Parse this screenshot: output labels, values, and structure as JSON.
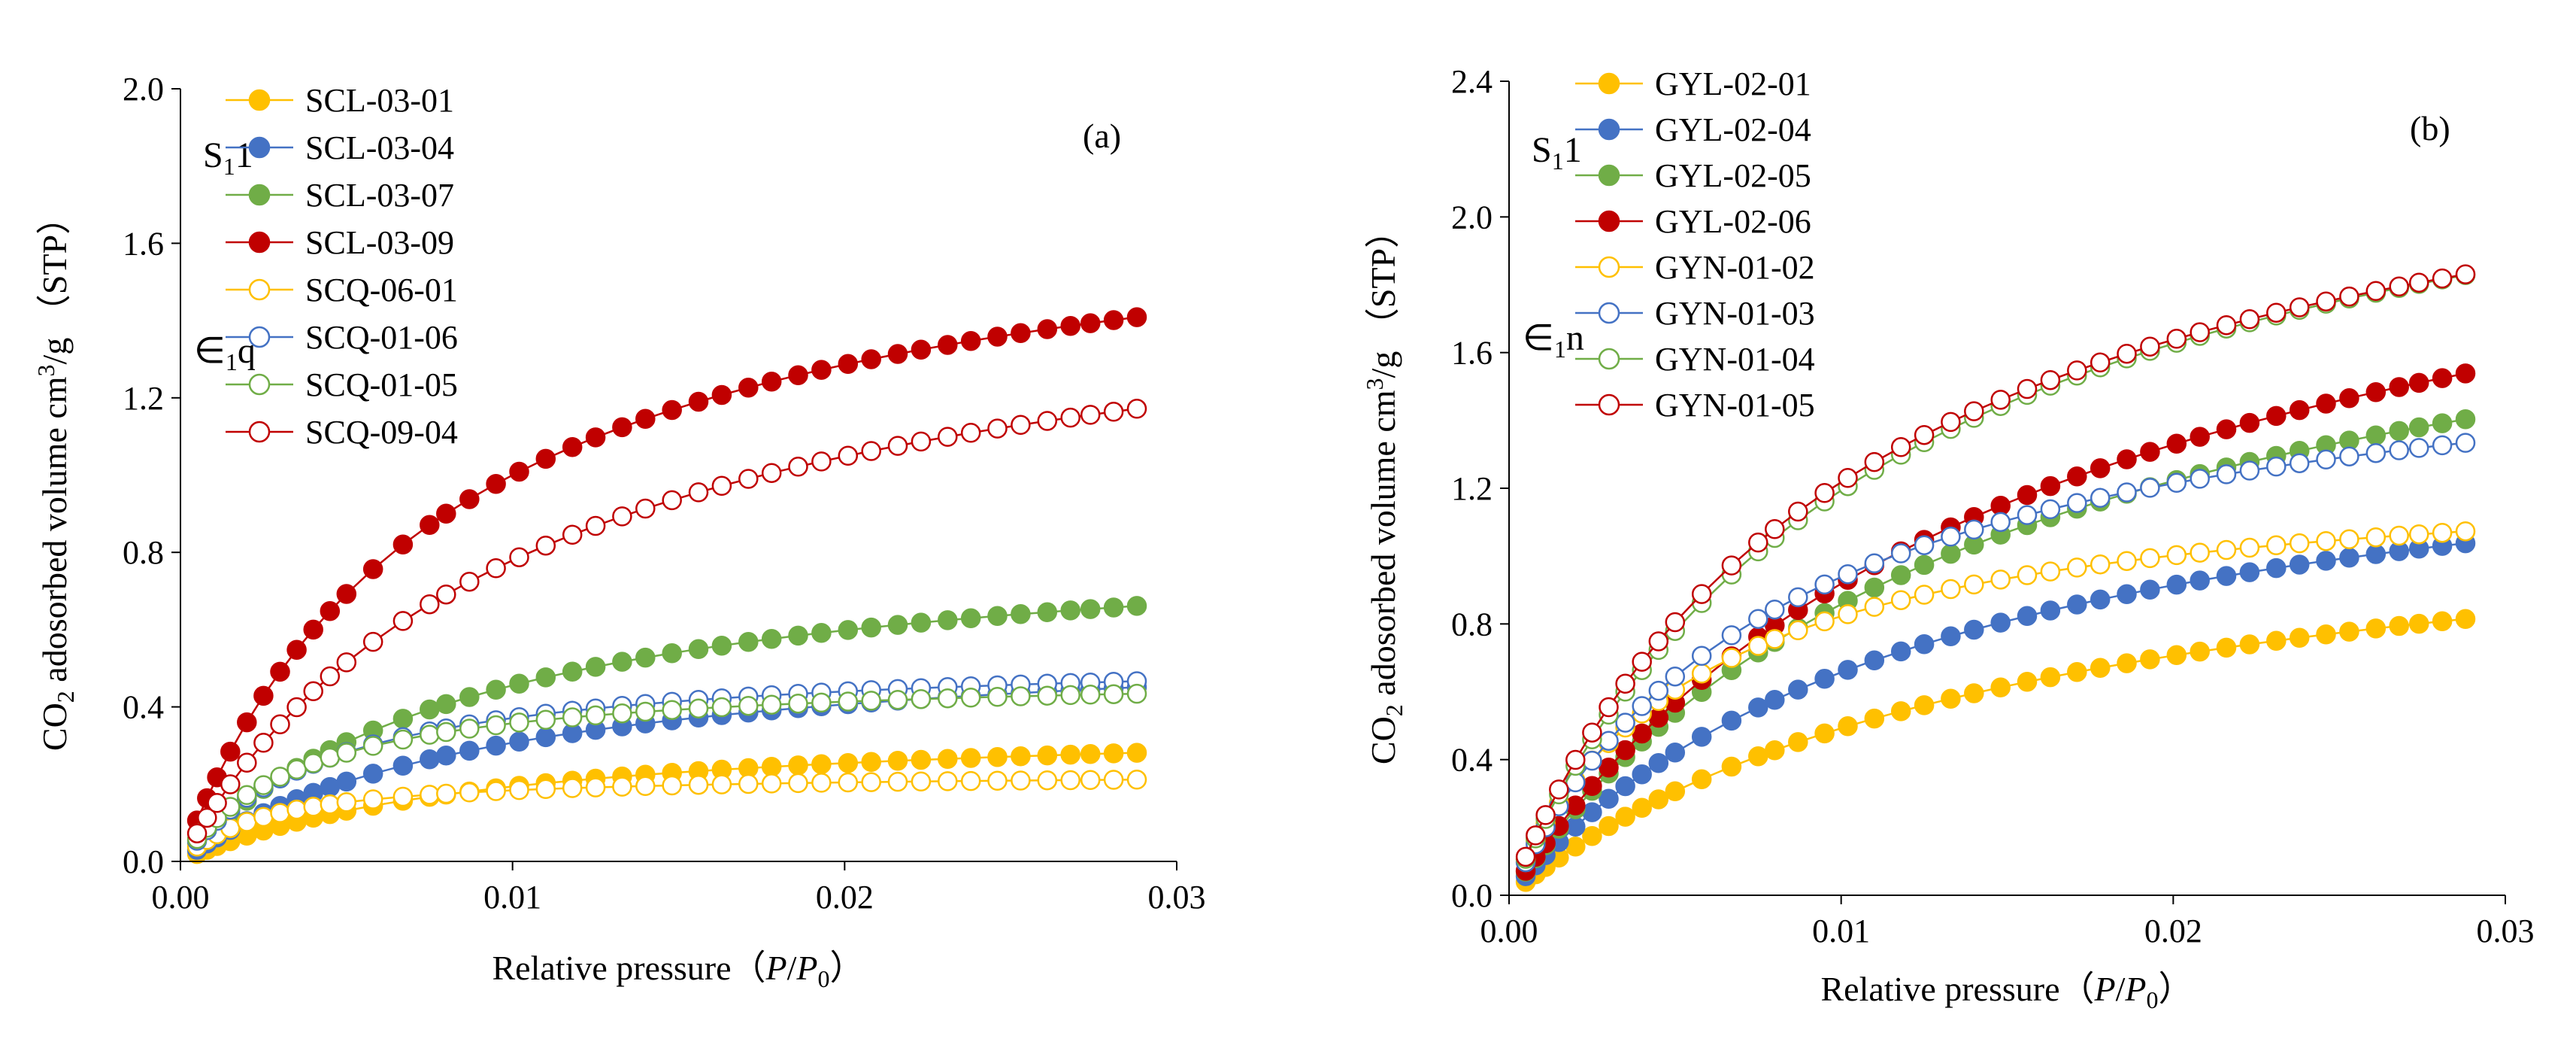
{
  "chart_data": [
    {
      "id": "a",
      "type": "scatter",
      "panel_label": "(a)",
      "xlabel_text": "Relative pressure（",
      "xlabel_p": "P",
      "xlabel_slash": "/",
      "xlabel_p0": "P",
      "xlabel_sub": "0",
      "xlabel_close": "）",
      "ylabel_co": "CO",
      "ylabel_sub": "2",
      "ylabel_mid": " adosorbed volume cm",
      "ylabel_sup": "3",
      "ylabel_end": "/g （STP）",
      "xlim": [
        0,
        0.03
      ],
      "ylim": [
        0,
        2.0
      ],
      "x_ticks": [
        "0.00",
        "0.01",
        "0.02",
        "0.03"
      ],
      "y_ticks": [
        "0.0",
        "0.4",
        "0.8",
        "1.2",
        "1.6",
        "2.0"
      ],
      "annotations": [
        {
          "main": "S",
          "sub": "1",
          "rest": "1"
        },
        {
          "main": "∈",
          "sub": "1",
          "rest": "q"
        }
      ],
      "series": [
        {
          "name": "SCL-03-01",
          "color": "#FFC000",
          "filled": true,
          "qmax": 0.37,
          "b": 110
        },
        {
          "name": "SCL-03-04",
          "color": "#4472C4",
          "filled": true,
          "qmax": 0.6,
          "b": 105
        },
        {
          "name": "SCL-03-07",
          "color": "#70AD47",
          "filled": true,
          "qmax": 0.87,
          "b": 110
        },
        {
          "name": "SCL-03-09",
          "color": "#C00000",
          "filled": true,
          "qmax": 1.8,
          "b": 125
        },
        {
          "name": "SCQ-06-01",
          "color": "#FFC000",
          "filled": false,
          "qmax": 0.23,
          "b": 400
        },
        {
          "name": "SCQ-01-06",
          "color": "#4472C4",
          "filled": false,
          "qmax": 0.54,
          "b": 220
        },
        {
          "name": "SCQ-01-05",
          "color": "#70AD47",
          "filled": false,
          "qmax": 0.49,
          "b": 270
        },
        {
          "name": "SCQ-09-04",
          "color": "#C00000",
          "filled": false,
          "qmax": 1.6,
          "b": 95
        }
      ]
    },
    {
      "id": "b",
      "type": "scatter",
      "panel_label": "(b)",
      "xlabel_text": "Relative pressure（",
      "xlabel_p": "P",
      "xlabel_slash": "/",
      "xlabel_p0": "P",
      "xlabel_sub": "0",
      "xlabel_close": "）",
      "ylabel_co": "CO",
      "ylabel_sub": "2",
      "ylabel_mid": " adosorbed volume cm",
      "ylabel_sup": "3",
      "ylabel_end": "/g （STP）",
      "xlim": [
        0,
        0.03
      ],
      "ylim": [
        0,
        2.4
      ],
      "x_ticks": [
        "0.00",
        "0.01",
        "0.02",
        "0.03"
      ],
      "y_ticks": [
        "0.0",
        "0.4",
        "0.8",
        "1.2",
        "1.6",
        "2.0",
        "2.4"
      ],
      "annotations": [
        {
          "main": "S",
          "sub": "1",
          "rest": "1"
        },
        {
          "main": "∈",
          "sub": "1",
          "rest": "n"
        }
      ],
      "series": [
        {
          "name": "GYL-02-01",
          "color": "#FFC000",
          "filled": true,
          "qmax": 1.25,
          "b": 65
        },
        {
          "name": "GYL-02-04",
          "color": "#4472C4",
          "filled": true,
          "qmax": 1.5,
          "b": 78
        },
        {
          "name": "GYL-02-05",
          "color": "#70AD47",
          "filled": true,
          "qmax": 2.12,
          "b": 68
        },
        {
          "name": "GYL-02-06",
          "color": "#C00000",
          "filled": true,
          "qmax": 2.4,
          "b": 62
        },
        {
          "name": "GYN-01-02",
          "color": "#FFC000",
          "filled": false,
          "qmax": 1.28,
          "b": 180
        },
        {
          "name": "GYN-01-03",
          "color": "#4472C4",
          "filled": false,
          "qmax": 1.72,
          "b": 120
        },
        {
          "name": "GYN-01-04",
          "color": "#70AD47",
          "filled": false,
          "qmax": 2.55,
          "b": 88
        },
        {
          "name": "GYN-01-05",
          "color": "#C00000",
          "filled": false,
          "qmax": 2.5,
          "b": 95
        }
      ]
    }
  ],
  "x_points": [
    0.0005,
    0.0008,
    0.0011,
    0.0015,
    0.002,
    0.0025,
    0.003,
    0.0035,
    0.004,
    0.0045,
    0.005,
    0.0058,
    0.0067,
    0.0075,
    0.008,
    0.0087,
    0.0095,
    0.0102,
    0.011,
    0.0118,
    0.0125,
    0.0133,
    0.014,
    0.0148,
    0.0156,
    0.0163,
    0.0171,
    0.0178,
    0.0186,
    0.0193,
    0.0201,
    0.0208,
    0.0216,
    0.0223,
    0.0231,
    0.0238,
    0.0246,
    0.0253,
    0.0261,
    0.0268,
    0.0274,
    0.0281,
    0.0288
  ]
}
